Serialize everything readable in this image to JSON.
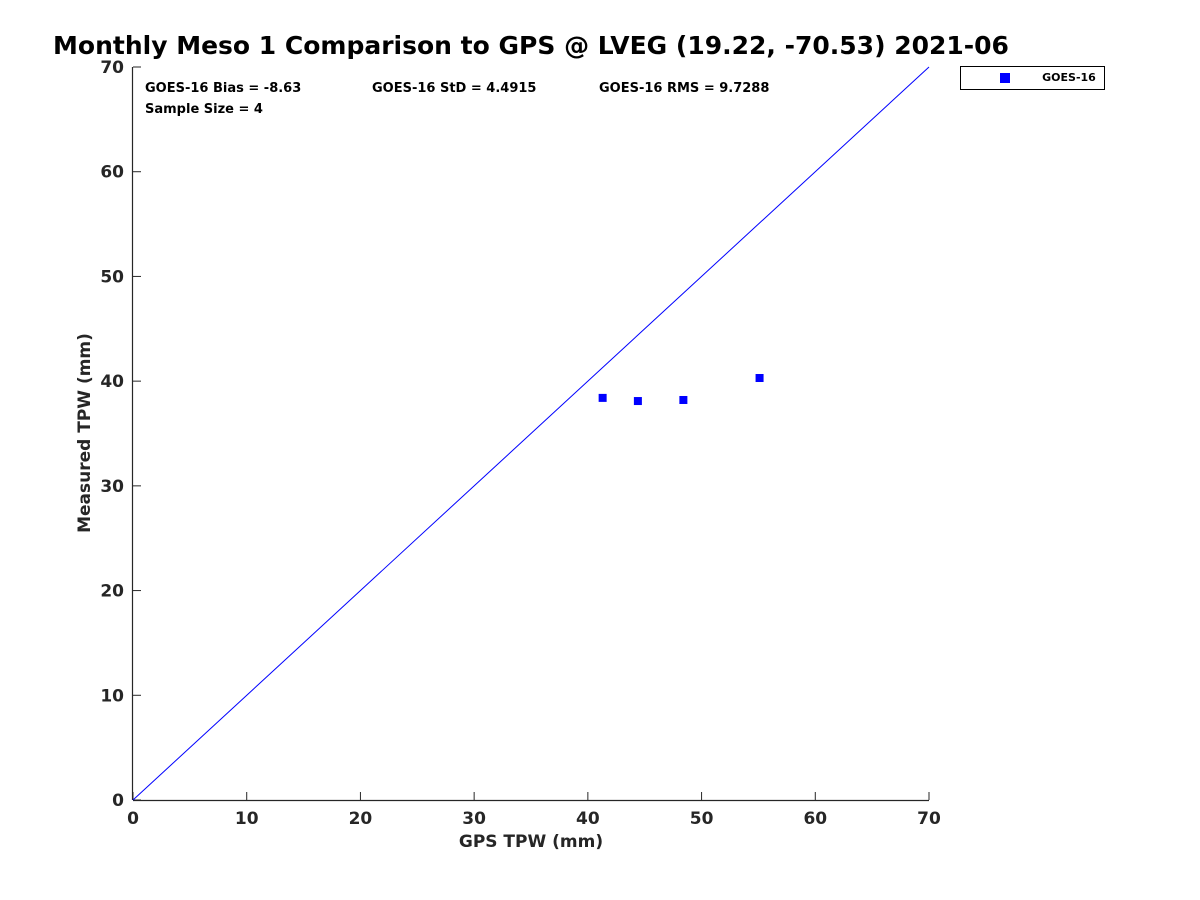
{
  "chart_data": {
    "type": "scatter",
    "title": "Monthly Meso 1 Comparison to GPS @ LVEG (19.22, -70.53) 2021-06",
    "xlabel": "GPS TPW (mm)",
    "ylabel": "Measured TPW (mm)",
    "xlim": [
      0,
      70
    ],
    "ylim": [
      0,
      70
    ],
    "xticks": [
      "0",
      "10",
      "20",
      "30",
      "40",
      "50",
      "60",
      "70"
    ],
    "yticks": [
      "0",
      "10",
      "20",
      "30",
      "40",
      "50",
      "60",
      "70"
    ],
    "grid": false,
    "legend_position": "outside top-right",
    "reference_line": {
      "x": [
        0,
        70
      ],
      "y": [
        0,
        70
      ],
      "color": "#0000ff"
    },
    "series": [
      {
        "name": "GOES-16",
        "color": "#0000ff",
        "marker": "square",
        "x": [
          41.3,
          44.4,
          48.4,
          55.1
        ],
        "y": [
          38.4,
          38.1,
          38.2,
          40.3
        ]
      }
    ],
    "annotations": {
      "bias": "GOES-16 Bias = -8.63",
      "std": "GOES-16 StD = 4.4915",
      "rms": "GOES-16 RMS = 9.7288",
      "sample_size": "Sample Size = 4"
    }
  }
}
